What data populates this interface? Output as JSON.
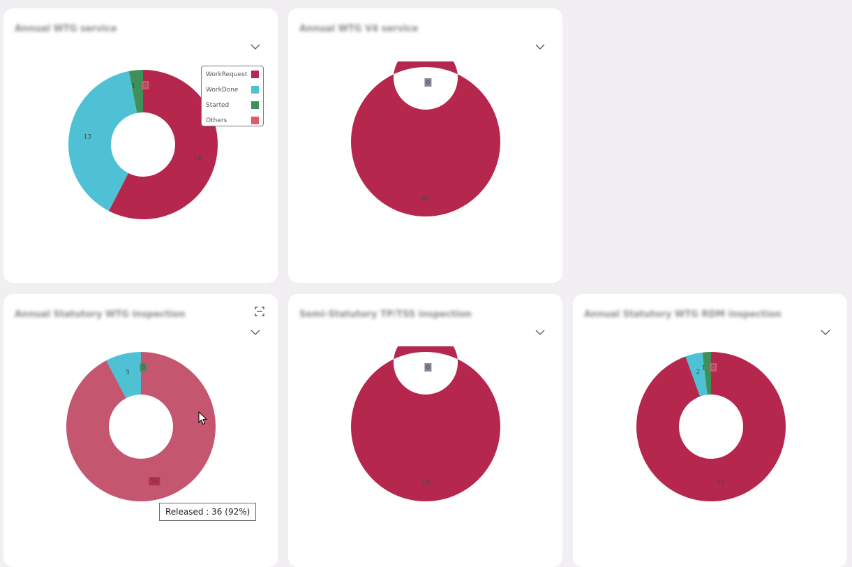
{
  "colors": {
    "work_request": "#b5274c",
    "work_done": "#4ec2d4",
    "started": "#3f8f5a",
    "others": "#e05a6e",
    "released_highlight": "#c4566f",
    "page_bg": "#f1eff2"
  },
  "legend": [
    {
      "label": "WorkRequest",
      "color": "#b5274c"
    },
    {
      "label": "WorkDone",
      "color": "#4ec2d4"
    },
    {
      "label": "Started",
      "color": "#3f8f5a"
    },
    {
      "label": "Others",
      "color": "#e05a6e"
    }
  ],
  "cards": [
    {
      "title": "Annual WTG service",
      "chart_data": {
        "type": "pie",
        "slices": [
          {
            "name": "WorkRequest",
            "value": 19,
            "label": "19",
            "color": "#b5274c"
          },
          {
            "name": "WorkDone",
            "value": 13,
            "label": "13",
            "color": "#4ec2d4"
          },
          {
            "name": "Started",
            "value": 1,
            "label": "1",
            "color": "#3f8f5a"
          },
          {
            "name": "Others",
            "value": 0,
            "label": "0",
            "color": "#e05a6e"
          }
        ]
      }
    },
    {
      "title": "Annual WTG V4 service",
      "chart_data": {
        "type": "pie",
        "slices": [
          {
            "name": "WorkRequest",
            "value": 45,
            "label": "45",
            "color": "#b5274c"
          },
          {
            "name": "Others",
            "value": 0,
            "label": "0",
            "color": "#7a6f86"
          }
        ]
      }
    },
    {
      "title": "Annual Statutory WTG inspection",
      "chart_data": {
        "type": "pie",
        "slices": [
          {
            "name": "Released",
            "value": 36,
            "label": "36",
            "color": "#c4566f"
          },
          {
            "name": "WorkDone",
            "value": 3,
            "label": "3",
            "color": "#4ec2d4"
          },
          {
            "name": "Started",
            "value": 0,
            "label": "0",
            "color": "#3f8f5a"
          }
        ]
      },
      "tooltip": "Released : 36 (92%)"
    },
    {
      "title": "Semi-Statutory TP/TSS inspection",
      "chart_data": {
        "type": "pie",
        "slices": [
          {
            "name": "WorkRequest",
            "value": 19,
            "label": "19",
            "color": "#b5274c"
          },
          {
            "name": "Others",
            "value": 0,
            "label": "0",
            "color": "#7a6f86"
          }
        ]
      }
    },
    {
      "title": "Annual Statutory WTG RDM inspection",
      "chart_data": {
        "type": "pie",
        "slices": [
          {
            "name": "WorkRequest",
            "value": 51,
            "label": "51",
            "color": "#b5274c"
          },
          {
            "name": "WorkDone",
            "value": 2,
            "label": "2",
            "color": "#4ec2d4"
          },
          {
            "name": "Started",
            "value": 1,
            "label": "1",
            "color": "#3f8f5a"
          },
          {
            "name": "Others",
            "value": 0,
            "label": "0",
            "color": "#e05a6e"
          }
        ]
      }
    }
  ],
  "icons": {
    "dropdown": "chevron-down-icon",
    "expand": "expand-icon",
    "cursor": "mouse-pointer-icon"
  }
}
